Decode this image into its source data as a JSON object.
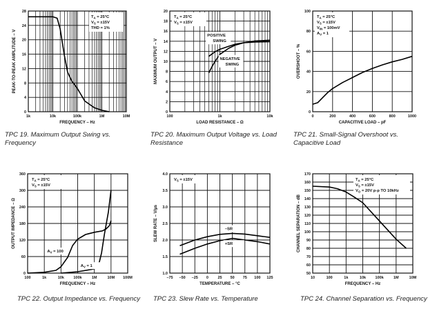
{
  "chart_data": [
    {
      "type": "line",
      "caption": "TPC 19.  Maximum Output Swing vs. Frequency",
      "xlabel": "FREQUENCY – Hz",
      "ylabel": "PEAK-TO-PEAK AMPLITUDE – V",
      "xscale": "log",
      "xlim": [
        1000,
        10000000
      ],
      "xticks": [
        1000,
        10000,
        100000,
        1000000,
        10000000
      ],
      "xtick_labels": [
        "1k",
        "10k",
        "100k",
        "1M",
        "10M"
      ],
      "ylim": [
        0,
        28
      ],
      "yticks": [
        0,
        4,
        8,
        12,
        16,
        20,
        24,
        28
      ],
      "ytick_labels": [
        "0",
        "4",
        "8",
        "12",
        "16",
        "20",
        "24",
        "28"
      ],
      "grid": true,
      "minor_grid": true,
      "conditions_placement": "top-right",
      "conditions": [
        {
          "t": "T",
          "s": "A",
          "r": " = 25°C"
        },
        {
          "t": "V",
          "s": "S",
          "r": " = ±15V"
        },
        {
          "t": "THD = 1%"
        }
      ],
      "series": [
        {
          "x": [
            1000,
            10000,
            15000,
            20000,
            30000,
            40000,
            60000,
            100000,
            200000,
            500000,
            1000000,
            2000000
          ],
          "y": [
            26.4,
            26.4,
            26,
            23,
            15.5,
            11,
            8.5,
            6.5,
            3,
            1.1,
            0.4,
            0
          ]
        }
      ],
      "annotations": []
    },
    {
      "type": "line",
      "caption": "TPC 20.  Maximum Output Voltage vs. Load Resistance",
      "xlabel": "LOAD RESISTANCE – Ω",
      "ylabel": "MAXIMUM OUTPUT – V",
      "xscale": "log",
      "xlim": [
        100,
        10000
      ],
      "xticks": [
        100,
        1000,
        10000
      ],
      "xtick_labels": [
        "100",
        "1k",
        "10k"
      ],
      "ylim": [
        0,
        20
      ],
      "yticks": [
        0,
        2,
        4,
        6,
        8,
        10,
        12,
        14,
        16,
        18,
        20
      ],
      "ytick_labels": [
        "0",
        "2",
        "4",
        "6",
        "8",
        "10",
        "12",
        "14",
        "16",
        "18",
        "20"
      ],
      "grid": true,
      "minor_grid": true,
      "conditions_placement": "top-left",
      "conditions": [
        {
          "t": "T",
          "s": "A",
          "r": " = 25°C"
        },
        {
          "t": "V",
          "s": "S",
          "r": " = ±15V"
        }
      ],
      "series": [
        {
          "name": "POSITIVE SWING",
          "x": [
            600,
            800,
            1000,
            1500,
            2000,
            3000,
            5000,
            10000
          ],
          "y": [
            11,
            11.9,
            12.4,
            13,
            13.4,
            13.7,
            13.85,
            13.9
          ]
        },
        {
          "name": "NEGATIVE SWING",
          "x": [
            600,
            700,
            800,
            1000,
            1500,
            2000,
            3000,
            5000,
            10000
          ],
          "y": [
            7.7,
            9,
            10,
            11.4,
            12.6,
            13.2,
            13.7,
            14.05,
            14.2
          ]
        }
      ],
      "annotations": [
        {
          "text": [
            "POSITIVE",
            "SWING"
          ],
          "at": [
            560,
            14.9
          ]
        },
        {
          "text": [
            "NEGATIVE",
            "SWING"
          ],
          "at": [
            1000,
            10.3
          ]
        }
      ]
    },
    {
      "type": "line",
      "caption": "TPC 21.  Small-Signal Overshoot vs. Capacitive Load",
      "xlabel": "CAPACITIVE LOAD – pF",
      "ylabel": "OVERSHOOT – %",
      "xscale": "linear",
      "xlim": [
        0,
        1000
      ],
      "xticks": [
        0,
        200,
        400,
        600,
        800,
        1000
      ],
      "xtick_labels": [
        "0",
        "200",
        "400",
        "600",
        "800",
        "1000"
      ],
      "ylim": [
        0,
        100
      ],
      "yticks": [
        0,
        20,
        40,
        60,
        80,
        100
      ],
      "ytick_labels": [
        "0",
        "20",
        "40",
        "60",
        "80",
        "100"
      ],
      "grid": true,
      "minor_grid": false,
      "conditions_placement": "top-left",
      "conditions": [
        {
          "t": "T",
          "s": "A",
          "r": " = 25°C"
        },
        {
          "t": "V",
          "s": "S",
          "r": " = ±15V"
        },
        {
          "t": "V",
          "s": "IN",
          "r": " = 100mV"
        },
        {
          "t": "A",
          "s": "V",
          "r": " = 1"
        }
      ],
      "series": [
        {
          "x": [
            0,
            50,
            100,
            150,
            200,
            300,
            400,
            500,
            600,
            700,
            800,
            900,
            1000
          ],
          "y": [
            7.5,
            9,
            14,
            19,
            23,
            29,
            34,
            39,
            43,
            46.5,
            49.5,
            52,
            55
          ]
        }
      ],
      "annotations": []
    },
    {
      "type": "line",
      "caption": "TPC 22.  Output Impedance vs. Frequency",
      "xlabel": "FREQUENCY – Hz",
      "ylabel": "OUTPUT IMPEDANCE – Ω",
      "xscale": "log",
      "xlim": [
        100,
        100000000
      ],
      "xticks": [
        100,
        1000,
        10000,
        100000,
        1000000,
        10000000,
        100000000
      ],
      "xtick_labels": [
        "100",
        "1k",
        "10k",
        "100k",
        "1M",
        "10M",
        "100M"
      ],
      "ylim": [
        0,
        360
      ],
      "yticks": [
        0,
        60,
        120,
        180,
        240,
        300,
        360
      ],
      "ytick_labels": [
        "0",
        "60",
        "120",
        "180",
        "240",
        "300",
        "360"
      ],
      "grid": true,
      "minor_grid": false,
      "conditions_placement": "top-left",
      "conditions": [
        {
          "t": "T",
          "s": "A",
          "r": " = 25°C"
        },
        {
          "t": "V",
          "s": "S",
          "r": " = ±15V"
        }
      ],
      "series": [
        {
          "name": "AV = 100",
          "x": [
            100,
            1000,
            5000,
            10000,
            25000,
            50000,
            100000,
            300000,
            1000000,
            3000000,
            5000000,
            8000000,
            10000000
          ],
          "y": [
            0,
            3,
            10,
            23,
            57,
            100,
            123,
            140,
            148,
            153,
            160,
            172,
            190
          ]
        },
        {
          "name": "AV = 1",
          "x": [
            10000,
            100000,
            1000000,
            2000000,
            2700000,
            4000000,
            7000000,
            10000000
          ],
          "y": [
            0,
            5,
            15,
            40,
            73,
            140,
            223,
            300
          ]
        }
      ],
      "annotations": [
        {
          "text": [
            {
              "t": "A",
              "s": "V",
              "r": " = 100"
            }
          ],
          "at": [
            1500,
            75
          ]
        },
        {
          "text": [
            {
              "t": "A",
              "s": "V",
              "r": " = 1"
            }
          ],
          "at": [
            150000,
            22
          ]
        }
      ]
    },
    {
      "type": "line",
      "caption": "TPC 23.  Slew Rate vs. Temperature",
      "xlabel": "TEMPERATURE – °C",
      "ylabel": "SLEW RATE – V/µs",
      "xscale": "linear",
      "xlim": [
        -75,
        125
      ],
      "xticks": [
        -75,
        -50,
        -25,
        0,
        25,
        50,
        75,
        100,
        125
      ],
      "xtick_labels": [
        "–75",
        "–50",
        "–25",
        "0",
        "25",
        "50",
        "75",
        "100",
        "125"
      ],
      "ylim": [
        1.0,
        4.0
      ],
      "yticks": [
        1.0,
        1.5,
        2.0,
        2.5,
        3.0,
        3.5,
        4.0
      ],
      "ytick_labels": [
        "1.0",
        "1.5",
        "2.0",
        "2.5",
        "3.0",
        "3.5",
        "4.0"
      ],
      "grid": true,
      "minor_grid": false,
      "conditions_placement": "top-left",
      "conditions": [
        {
          "t": "V",
          "s": "S",
          "r": " = ±15V"
        }
      ],
      "series": [
        {
          "name": "–SR",
          "x": [
            -55,
            -25,
            0,
            25,
            50,
            75,
            100,
            125
          ],
          "y": [
            1.83,
            2.0,
            2.1,
            2.17,
            2.2,
            2.18,
            2.13,
            2.08
          ]
        },
        {
          "name": "+SR",
          "x": [
            -55,
            -25,
            0,
            25,
            50,
            75,
            100,
            125
          ],
          "y": [
            1.57,
            1.75,
            1.88,
            1.98,
            2.05,
            2.0,
            1.95,
            1.88
          ]
        }
      ],
      "annotations": [
        {
          "text": [
            "–SR"
          ],
          "at": [
            35,
            2.3
          ]
        },
        {
          "text": [
            "+SR"
          ],
          "at": [
            35,
            1.85
          ]
        }
      ]
    },
    {
      "type": "line",
      "caption": "TPC 24.  Channel Separation vs. Frequency",
      "xlabel": "FREQUENCY – Hz",
      "ylabel": "CHANNEL SEPARATION – dB",
      "xscale": "log",
      "xlim": [
        10,
        10000000
      ],
      "xticks": [
        10,
        100,
        1000,
        10000,
        100000,
        1000000,
        10000000
      ],
      "xtick_labels": [
        "10",
        "100",
        "1k",
        "10k",
        "100k",
        "1M",
        "10M"
      ],
      "ylim": [
        50,
        170
      ],
      "yticks": [
        50,
        60,
        70,
        80,
        90,
        100,
        110,
        120,
        130,
        140,
        150,
        160,
        170
      ],
      "ytick_labels": [
        "50",
        "60",
        "70",
        "80",
        "90",
        "100",
        "110",
        "120",
        "130",
        "140",
        "150",
        "160",
        "170"
      ],
      "grid": true,
      "minor_grid": false,
      "conditions_placement": "top-right",
      "conditions": [
        {
          "t": "T",
          "s": "A",
          "r": " = 25°C"
        },
        {
          "t": "V",
          "s": "S",
          "r": " = ±15V"
        },
        {
          "t": "V",
          "s": "O",
          "r": " = 20V p-p TO 10kHz"
        }
      ],
      "series": [
        {
          "x": [
            10,
            100,
            300,
            1000,
            3000,
            10000,
            100000,
            1000000,
            4000000
          ],
          "y": [
            155,
            154,
            152,
            148,
            142,
            135,
            113,
            91,
            80
          ]
        }
      ],
      "annotations": []
    }
  ]
}
